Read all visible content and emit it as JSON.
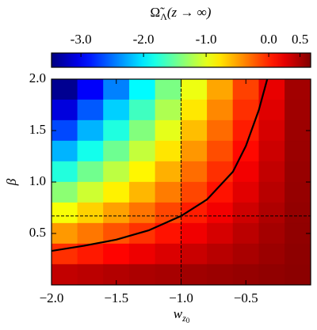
{
  "chart_data": {
    "type": "heatmap",
    "title": {
      "symbol": "Ω̃",
      "subscript": "Λ",
      "argument": "(z → ∞)"
    },
    "xlabel": {
      "symbol": "w",
      "subscript": "z",
      "subsubscript": "0"
    },
    "ylabel": "β",
    "xlim": [
      -2.0,
      0.0
    ],
    "ylim": [
      0.0,
      2.0
    ],
    "xticks": [
      {
        "value": -2.0,
        "label": "−2.0"
      },
      {
        "value": -1.5,
        "label": "−1.5"
      },
      {
        "value": -1.0,
        "label": "−1.0"
      },
      {
        "value": -0.5,
        "label": "−0.5"
      }
    ],
    "yticks": [
      0.5,
      {
        "value": 1.0,
        "label": "1.0"
      },
      1.5,
      {
        "value": 2.0,
        "label": "2.0"
      }
    ],
    "x": [
      -1.9,
      -1.7,
      -1.5,
      -1.3,
      -1.1,
      -0.9,
      -0.7,
      -0.5,
      -0.3,
      -0.1
    ],
    "y": [
      1.9,
      1.7,
      1.5,
      1.3,
      1.1,
      0.9,
      0.7,
      0.5,
      0.3,
      0.1
    ],
    "z": [
      [
        -3.4,
        -2.97,
        -2.43,
        -1.93,
        -1.42,
        -0.95,
        -0.52,
        -0.11,
        0.24,
        0.53
      ],
      [
        -3.09,
        -2.59,
        -2.11,
        -1.66,
        -1.21,
        -0.79,
        -0.4,
        -0.04,
        0.28,
        0.54
      ],
      [
        -2.66,
        -2.22,
        -1.79,
        -1.39,
        -0.99,
        -0.62,
        -0.28,
        0.04,
        0.32,
        0.55
      ],
      [
        -2.22,
        -1.84,
        -1.47,
        -1.12,
        -0.78,
        -0.46,
        -0.16,
        0.12,
        0.36,
        0.56
      ],
      [
        -1.78,
        -1.46,
        -1.15,
        -0.85,
        -0.56,
        -0.29,
        -0.04,
        0.2,
        0.4,
        0.57
      ],
      [
        -1.35,
        -1.08,
        -0.83,
        -0.59,
        -0.35,
        -0.13,
        0.08,
        0.27,
        0.44,
        0.58
      ],
      [
        -0.91,
        -0.7,
        -0.5,
        -0.32,
        -0.13,
        0.04,
        0.2,
        0.35,
        0.48,
        0.59
      ],
      [
        -0.47,
        -0.33,
        -0.18,
        -0.05,
        0.08,
        0.21,
        0.32,
        0.43,
        0.52,
        0.6
      ],
      [
        -0.04,
        0.05,
        0.14,
        0.22,
        0.3,
        0.37,
        0.44,
        0.5,
        0.56,
        0.61
      ],
      [
        0.4,
        0.43,
        0.46,
        0.49,
        0.51,
        0.54,
        0.56,
        0.58,
        0.6,
        0.62
      ]
    ],
    "colormap": "jet",
    "colorbar": {
      "clim": [
        -3.47,
        0.67
      ],
      "ticks": [
        {
          "value": -3.0,
          "label": "-3.0"
        },
        {
          "value": -2.0,
          "label": "-2.0"
        },
        {
          "value": -1.0,
          "label": "-1.0"
        },
        {
          "value": 0.0,
          "label": "0.0"
        },
        0.5
      ]
    },
    "curve": {
      "color": "#000000",
      "x": [
        -2.0,
        -1.75,
        -1.5,
        -1.25,
        -1.0,
        -0.8,
        -0.6,
        -0.5,
        -0.4,
        -0.335
      ],
      "y": [
        0.33,
        0.38,
        0.44,
        0.53,
        0.67,
        0.83,
        1.1,
        1.35,
        1.7,
        2.0
      ]
    },
    "reference": {
      "x": -1.0,
      "y": 0.67
    }
  }
}
